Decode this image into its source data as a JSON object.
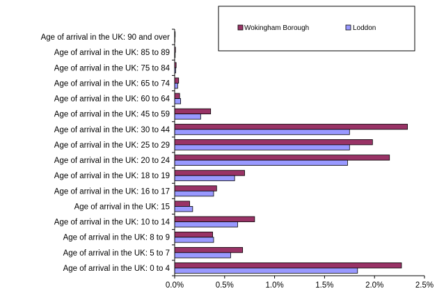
{
  "chart_data": {
    "type": "bar",
    "orientation": "horizontal",
    "categories": [
      "Age of arrival in the UK: 0 to 4",
      "Age of arrival in the UK: 5 to 7",
      "Age of arrival in the UK: 8 to 9",
      "Age of arrival in the UK: 10 to 14",
      "Age of arrival in the UK: 15",
      "Age of arrival in the UK: 16 to 17",
      "Age of arrival in the UK: 18 to 19",
      "Age of arrival in the UK: 20 to 24",
      "Age of arrival in the UK: 25 to 29",
      "Age of arrival in the UK: 30 to 44",
      "Age of arrival in the UK: 45 to 59",
      "Age of arrival in the UK: 60 to 64",
      "Age of arrival in the UK: 65 to 74",
      "Age of arrival in the UK: 75 to 84",
      "Age of arrival in the UK: 85 to 89",
      "Age of arrival in the UK: 90 and over"
    ],
    "series": [
      {
        "name": "Wokingham Borough",
        "color": "#993366",
        "values": [
          2.27,
          0.68,
          0.38,
          0.8,
          0.15,
          0.42,
          0.7,
          2.15,
          1.98,
          2.33,
          0.36,
          0.05,
          0.04,
          0.015,
          0.008,
          0.005
        ]
      },
      {
        "name": "Loddon",
        "color": "#9999ff",
        "values": [
          1.83,
          0.56,
          0.39,
          0.63,
          0.18,
          0.39,
          0.6,
          1.73,
          1.75,
          1.75,
          0.26,
          0.06,
          0.03,
          0.01,
          0.005,
          0.003
        ]
      }
    ],
    "xlim": [
      0,
      2.5
    ],
    "xticks": [
      "0.0%",
      "0.5%",
      "1.0%",
      "1.5%",
      "2.0%",
      "2.5%"
    ],
    "grid": false,
    "legend_position": "top-right"
  }
}
